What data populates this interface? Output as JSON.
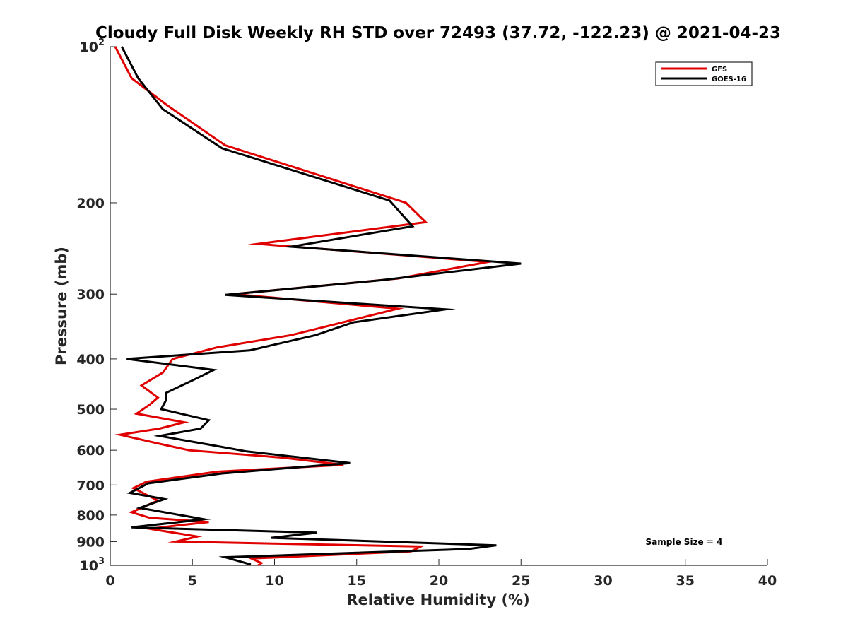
{
  "chart_data": {
    "type": "line",
    "title": "Cloudy Full Disk Weekly RH STD over 72493 (37.72, -122.23) @ 2021-04-23",
    "xlabel": "Relative Humidity (%)",
    "ylabel": "Pressure (mb)",
    "xlim": [
      0,
      40
    ],
    "ylim": [
      100,
      1000
    ],
    "y_scale": "log",
    "y_reversed": false,
    "grid": false,
    "legend_position": "top-right",
    "x_ticks": [
      "0",
      "5",
      "10",
      "15",
      "20",
      "25",
      "30",
      "35",
      "40"
    ],
    "y_ticks": [
      {
        "value": 100,
        "label": "10",
        "sup": "2"
      },
      {
        "value": 200,
        "label": "200",
        "sup": ""
      },
      {
        "value": 300,
        "label": "300",
        "sup": ""
      },
      {
        "value": 400,
        "label": "400",
        "sup": ""
      },
      {
        "value": 500,
        "label": "500",
        "sup": ""
      },
      {
        "value": 600,
        "label": "600",
        "sup": ""
      },
      {
        "value": 700,
        "label": "700",
        "sup": ""
      },
      {
        "value": 800,
        "label": "800",
        "sup": ""
      },
      {
        "value": 900,
        "label": "900",
        "sup": ""
      },
      {
        "value": 1000,
        "label": "10",
        "sup": "3"
      }
    ],
    "annotation": "Sample Size = 4",
    "series": [
      {
        "name": "GFS",
        "color": "#e00000",
        "points": [
          [
            0.3,
            100
          ],
          [
            1.3,
            115
          ],
          [
            3.5,
            130
          ],
          [
            7.0,
            155
          ],
          [
            18.0,
            200
          ],
          [
            19.2,
            218
          ],
          [
            9.0,
            240
          ],
          [
            23.0,
            260
          ],
          [
            17.5,
            280
          ],
          [
            7.5,
            300
          ],
          [
            17.5,
            320
          ],
          [
            11.0,
            360
          ],
          [
            6.5,
            380
          ],
          [
            3.8,
            400
          ],
          [
            3.2,
            425
          ],
          [
            1.9,
            450
          ],
          [
            2.9,
            475
          ],
          [
            2.4,
            490
          ],
          [
            1.6,
            510
          ],
          [
            4.5,
            530
          ],
          [
            3.0,
            545
          ],
          [
            0.6,
            560
          ],
          [
            2.7,
            580
          ],
          [
            4.8,
            600
          ],
          [
            10.5,
            620
          ],
          [
            14.2,
            640
          ],
          [
            6.5,
            660
          ],
          [
            2.2,
            690
          ],
          [
            1.4,
            710
          ],
          [
            2.9,
            750
          ],
          [
            1.3,
            790
          ],
          [
            2.4,
            810
          ],
          [
            6.0,
            825
          ],
          [
            4.5,
            835
          ],
          [
            2.4,
            850
          ],
          [
            5.3,
            880
          ],
          [
            4.0,
            900
          ],
          [
            18.9,
            920
          ],
          [
            18.3,
            940
          ],
          [
            8.6,
            970
          ],
          [
            9.2,
            990
          ],
          [
            9.0,
            1000
          ]
        ]
      },
      {
        "name": "GOES-16",
        "color": "#000000",
        "points": [
          [
            0.7,
            100
          ],
          [
            1.7,
            115
          ],
          [
            3.2,
            132
          ],
          [
            6.8,
            157
          ],
          [
            17.0,
            198
          ],
          [
            18.4,
            222
          ],
          [
            11.0,
            243
          ],
          [
            25.0,
            262
          ],
          [
            16.5,
            282
          ],
          [
            7.0,
            301
          ],
          [
            20.4,
            321
          ],
          [
            14.8,
            340
          ],
          [
            12.5,
            360
          ],
          [
            8.5,
            385
          ],
          [
            1.0,
            400
          ],
          [
            6.3,
            420
          ],
          [
            5.0,
            440
          ],
          [
            3.4,
            465
          ],
          [
            3.4,
            480
          ],
          [
            3.1,
            500
          ],
          [
            6.0,
            525
          ],
          [
            5.5,
            545
          ],
          [
            3.0,
            563
          ],
          [
            6.0,
            585
          ],
          [
            8.3,
            603
          ],
          [
            14.6,
            635
          ],
          [
            6.8,
            665
          ],
          [
            2.3,
            695
          ],
          [
            1.2,
            725
          ],
          [
            3.3,
            745
          ],
          [
            1.8,
            775
          ],
          [
            5.7,
            815
          ],
          [
            1.3,
            845
          ],
          [
            12.6,
            865
          ],
          [
            9.8,
            885
          ],
          [
            23.5,
            915
          ],
          [
            21.8,
            930
          ],
          [
            7.0,
            965
          ],
          [
            8.5,
            995
          ],
          [
            8.5,
            1000
          ]
        ]
      }
    ]
  }
}
